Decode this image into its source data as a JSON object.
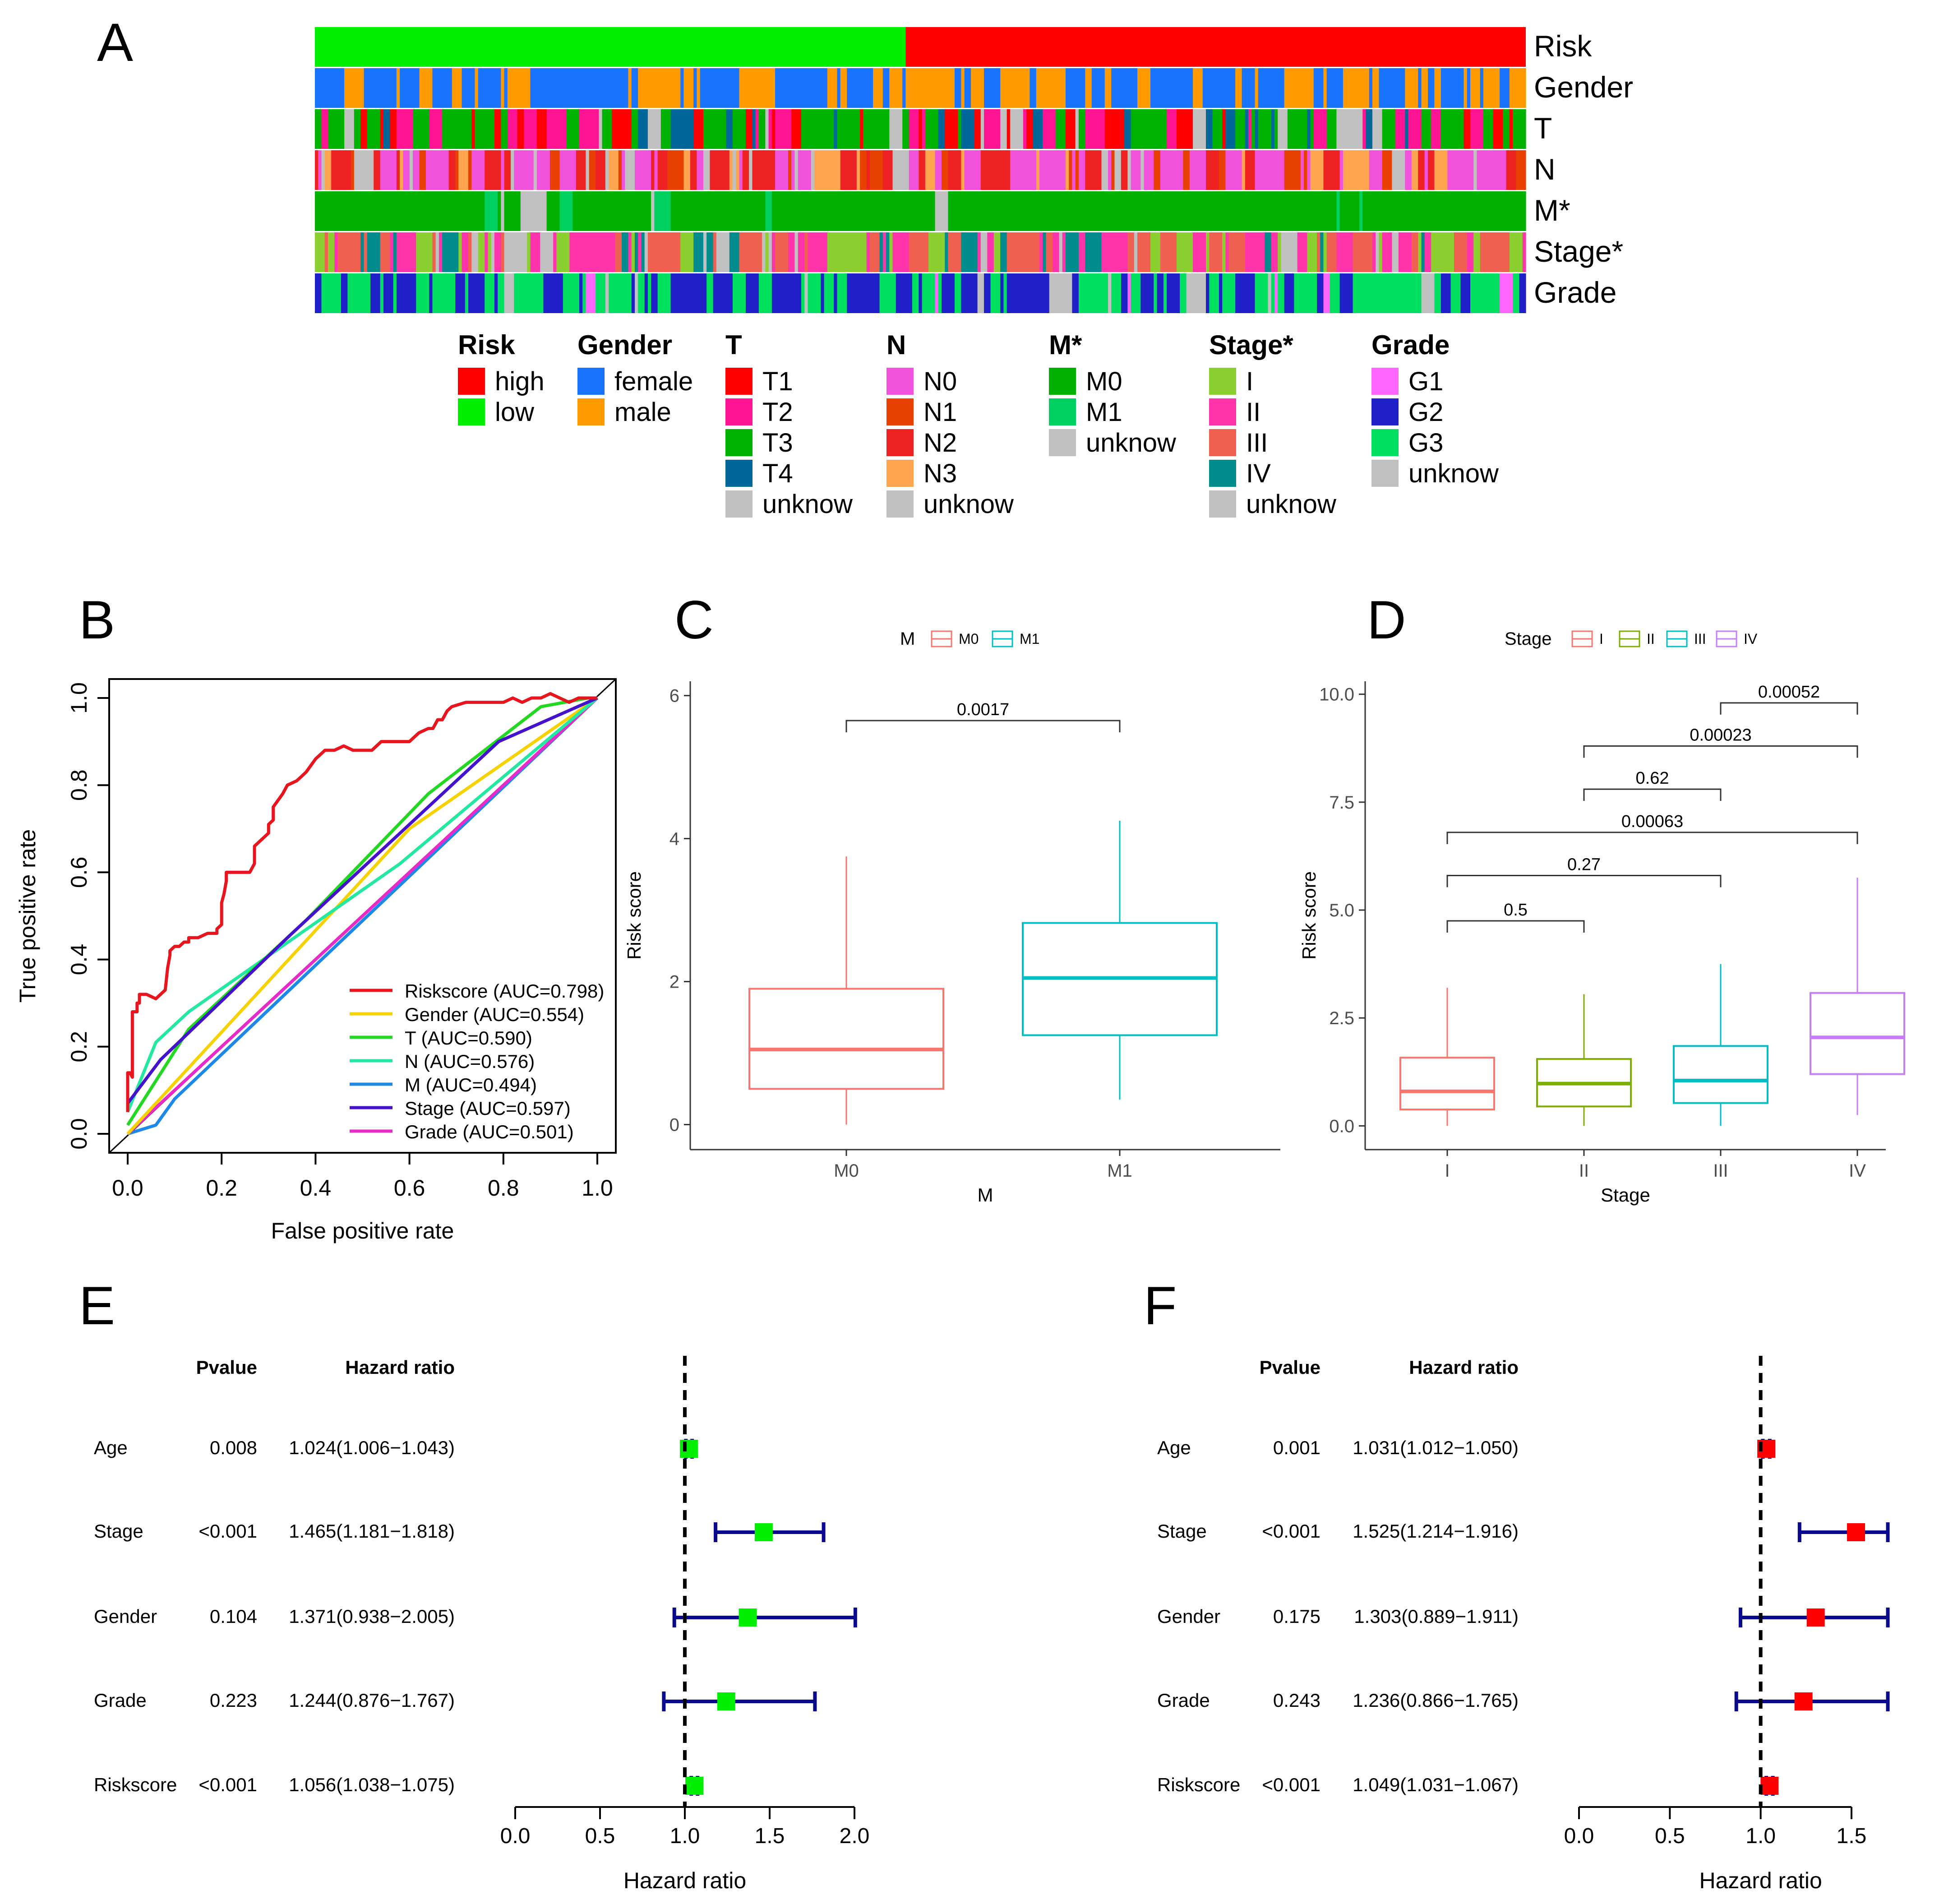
{
  "panels": {
    "A": "A",
    "B": "B",
    "C": "C",
    "D": "D",
    "E": "E",
    "F": "F"
  },
  "colors": {
    "low": "#00EE00",
    "high": "#FF0000",
    "female": "#1874FF",
    "male": "#FF9A00",
    "T1": "#FF0000",
    "T2": "#FF1493",
    "T3": "#00B200",
    "T4": "#00679A",
    "N0": "#F052DC",
    "N1": "#E84000",
    "N2": "#EE2222",
    "N3": "#FFA54F",
    "M0": "#00B000",
    "M1": "#00D060",
    "I": "#8BD030",
    "II": "#FF33AA",
    "III": "#F06050",
    "IV": "#008C8C",
    "G1": "#FF66FF",
    "G2": "#2020C8",
    "G3": "#00E060",
    "unknow": "#C0C0C0",
    "box_M0": "#F8766D",
    "box_M1": "#00BFC4",
    "box_I": "#F8766D",
    "box_II": "#7CAE00",
    "box_III": "#00BFC4",
    "box_IV": "#C77CFF",
    "forest_E_point": "#00EE00",
    "forest_F_point": "#FF0000",
    "forest_ci": "#0A0A8C"
  },
  "chart_data": [
    {
      "panel": "A",
      "type": "heatmap",
      "rows": [
        "Risk",
        "Gender",
        "T",
        "N",
        "M*",
        "Stage*",
        "Grade"
      ],
      "columns_count": 371,
      "row_categories": {
        "Risk": [
          "low",
          "high"
        ],
        "Gender": [
          "female",
          "male"
        ],
        "T": [
          "T1",
          "T2",
          "T3",
          "T4",
          "unknow"
        ],
        "N": [
          "N0",
          "N1",
          "N2",
          "N3",
          "unknow"
        ],
        "M*": [
          "M0",
          "M1",
          "unknow"
        ],
        "Stage*": [
          "I",
          "II",
          "III",
          "IV",
          "unknow"
        ],
        "Grade": [
          "G1",
          "G2",
          "G3",
          "unknow"
        ]
      },
      "risk_low_fraction": 0.487,
      "legend": [
        {
          "title": "Risk",
          "items": [
            "high",
            "low"
          ]
        },
        {
          "title": "Gender",
          "items": [
            "female",
            "male"
          ]
        },
        {
          "title": "T",
          "items": [
            "T1",
            "T2",
            "T3",
            "T4",
            "unknow"
          ]
        },
        {
          "title": "N",
          "items": [
            "N0",
            "N1",
            "N2",
            "N3",
            "unknow"
          ]
        },
        {
          "title": "M*",
          "items": [
            "M0",
            "M1",
            "unknow"
          ]
        },
        {
          "title": "Stage*",
          "items": [
            "I",
            "II",
            "III",
            "IV",
            "unknow"
          ]
        },
        {
          "title": "Grade",
          "items": [
            "G1",
            "G2",
            "G3",
            "unknow"
          ]
        }
      ],
      "legend_keys": {
        "Risk": [
          "high",
          "low"
        ],
        "Gender": [
          "female",
          "male"
        ],
        "T": [
          "T1",
          "T2",
          "T3",
          "T4",
          "unknow"
        ],
        "N": [
          "N0",
          "N1",
          "N2",
          "N3",
          "unknow"
        ],
        "M*": [
          "M0",
          "M1",
          "unknow"
        ],
        "Stage*": [
          "I",
          "II",
          "III",
          "IV",
          "unknow"
        ],
        "Grade": [
          "G1",
          "G2",
          "G3",
          "unknow"
        ]
      }
    },
    {
      "panel": "B",
      "type": "line",
      "xlabel": "False positive rate",
      "ylabel": "True positive rate",
      "xlim": [
        0,
        1
      ],
      "ylim": [
        0,
        1
      ],
      "xticks": [
        "0.0",
        "0.2",
        "0.4",
        "0.6",
        "0.8",
        "1.0"
      ],
      "yticks": [
        "0.0",
        "0.2",
        "0.4",
        "0.6",
        "0.8",
        "1.0"
      ],
      "legend_placement": "bottom-right",
      "series": [
        {
          "name": "Riskscore (AUC=0.798)",
          "color": "#E8141E",
          "x": [
            0,
            0,
            0.005,
            0.01,
            0.01,
            0.02,
            0.02,
            0.025,
            0.025,
            0.04,
            0.06,
            0.08,
            0.085,
            0.09,
            0.09,
            0.1,
            0.11,
            0.12,
            0.13,
            0.13,
            0.15,
            0.17,
            0.19,
            0.19,
            0.2,
            0.2,
            0.205,
            0.21,
            0.21,
            0.23,
            0.26,
            0.27,
            0.27,
            0.28,
            0.3,
            0.3,
            0.31,
            0.31,
            0.33,
            0.34,
            0.36,
            0.37,
            0.38,
            0.4,
            0.42,
            0.44,
            0.46,
            0.48,
            0.5,
            0.52,
            0.54,
            0.56,
            0.58,
            0.6,
            0.62,
            0.64,
            0.65,
            0.66,
            0.67,
            0.68,
            0.69,
            0.72,
            0.75,
            0.78,
            0.8,
            0.82,
            0.84,
            0.86,
            0.88,
            0.9,
            0.92,
            0.94,
            0.96,
            0.98,
            1.0
          ],
          "y": [
            0.05,
            0.14,
            0.14,
            0.13,
            0.28,
            0.28,
            0.3,
            0.3,
            0.32,
            0.32,
            0.31,
            0.33,
            0.38,
            0.41,
            0.42,
            0.43,
            0.43,
            0.44,
            0.44,
            0.45,
            0.45,
            0.46,
            0.46,
            0.47,
            0.48,
            0.53,
            0.55,
            0.58,
            0.6,
            0.6,
            0.6,
            0.62,
            0.66,
            0.67,
            0.69,
            0.71,
            0.72,
            0.75,
            0.78,
            0.8,
            0.81,
            0.82,
            0.83,
            0.86,
            0.88,
            0.88,
            0.89,
            0.88,
            0.88,
            0.88,
            0.9,
            0.9,
            0.9,
            0.9,
            0.92,
            0.93,
            0.93,
            0.95,
            0.95,
            0.97,
            0.98,
            0.99,
            0.99,
            0.99,
            0.99,
            1.0,
            0.99,
            1.0,
            1.0,
            1.01,
            1.0,
            0.99,
            1.0,
            1.0,
            1.0
          ]
        },
        {
          "name": "Gender (AUC=0.554)",
          "color": "#F5D200",
          "x": [
            0,
            0.6,
            1.0
          ],
          "y": [
            0.0,
            0.7,
            1.0
          ]
        },
        {
          "name": "T (AUC=0.590)",
          "color": "#22D822",
          "x": [
            0,
            0.13,
            0.38,
            0.64,
            0.88,
            0.98,
            1.0
          ],
          "y": [
            0.02,
            0.24,
            0.49,
            0.78,
            0.98,
            1.0,
            1.0
          ]
        },
        {
          "name": "N (AUC=0.576)",
          "color": "#22E8A0",
          "x": [
            0,
            0.06,
            0.13,
            0.58,
            1.0
          ],
          "y": [
            0.05,
            0.21,
            0.28,
            0.62,
            1.0
          ]
        },
        {
          "name": "M (AUC=0.494)",
          "color": "#1C88E8",
          "x": [
            0,
            0.06,
            0.1,
            1.0
          ],
          "y": [
            0.0,
            0.02,
            0.08,
            1.0
          ]
        },
        {
          "name": "Stage (AUC=0.597)",
          "color": "#4412CC",
          "x": [
            0,
            0.07,
            0.35,
            0.79,
            1.0
          ],
          "y": [
            0.07,
            0.17,
            0.46,
            0.9,
            1.0
          ]
        },
        {
          "name": "Grade (AUC=0.501)",
          "color": "#E82AC8",
          "x": [
            0,
            0.02,
            1.0
          ],
          "y": [
            0.0,
            0.02,
            1.0
          ]
        }
      ]
    },
    {
      "panel": "C",
      "type": "bar",
      "subtype": "boxplot",
      "legend_title": "M",
      "legend_items": [
        "M0",
        "M1"
      ],
      "xlabel": "M",
      "ylabel": "Risk score",
      "ylim": [
        -0.35,
        6.2
      ],
      "yticks": [
        0,
        2,
        4,
        6
      ],
      "categories": [
        "M0",
        "M1"
      ],
      "boxes": [
        {
          "group": "M0",
          "min": 0.0,
          "q1": 0.5,
          "median": 1.05,
          "q3": 1.9,
          "max": 3.75
        },
        {
          "group": "M1",
          "min": 0.35,
          "q1": 1.25,
          "median": 2.05,
          "q3": 2.82,
          "max": 4.25
        }
      ],
      "comparisons": [
        {
          "from": "M0",
          "to": "M1",
          "p": "0.0017",
          "y": 5.65
        }
      ]
    },
    {
      "panel": "D",
      "type": "bar",
      "subtype": "boxplot",
      "legend_title": "Stage",
      "legend_items": [
        "I",
        "II",
        "III",
        "IV"
      ],
      "xlabel": "Stage",
      "ylabel": "Risk score",
      "ylim": [
        -0.55,
        10.3
      ],
      "yticks": [
        "0.0",
        "2.5",
        "5.0",
        "7.5",
        "10.0"
      ],
      "ytick_values": [
        0,
        2.5,
        5,
        7.5,
        10
      ],
      "categories": [
        "I",
        "II",
        "III",
        "IV"
      ],
      "boxes": [
        {
          "group": "I",
          "min": 0.0,
          "q1": 0.38,
          "median": 0.8,
          "q3": 1.58,
          "max": 3.2
        },
        {
          "group": "II",
          "min": 0.0,
          "q1": 0.45,
          "median": 0.98,
          "q3": 1.55,
          "max": 3.05
        },
        {
          "group": "III",
          "min": 0.0,
          "q1": 0.53,
          "median": 1.05,
          "q3": 1.85,
          "max": 3.75
        },
        {
          "group": "IV",
          "min": 0.25,
          "q1": 1.2,
          "median": 2.05,
          "q3": 3.08,
          "max": 5.75
        }
      ],
      "comparisons": [
        {
          "from": "I",
          "to": "II",
          "p": "0.5",
          "y": 4.75
        },
        {
          "from": "I",
          "to": "III",
          "p": "0.27",
          "y": 5.8
        },
        {
          "from": "I",
          "to": "IV",
          "p": "0.00063",
          "y": 6.8
        },
        {
          "from": "II",
          "to": "III",
          "p": "0.62",
          "y": 7.8
        },
        {
          "from": "II",
          "to": "IV",
          "p": "0.00023",
          "y": 8.8
        },
        {
          "from": "III",
          "to": "IV",
          "p": "0.00052",
          "y": 9.8
        }
      ]
    },
    {
      "panel": "E",
      "type": "scatter",
      "subtype": "forest",
      "col_pvalue": "Pvalue",
      "col_hr": "Hazard ratio",
      "xlabel": "Hazard ratio",
      "xlim": [
        0,
        2.0
      ],
      "xticks": [
        "0.0",
        "0.5",
        "1.0",
        "1.5",
        "2.0"
      ],
      "xtick_values": [
        0,
        0.5,
        1.0,
        1.5,
        2.0
      ],
      "reference_x": 1.0,
      "rows": [
        {
          "label": "Age",
          "pvalue": "0.008",
          "hr_text": "1.024(1.006−1.043)",
          "hr": 1.024,
          "low": 1.006,
          "high": 1.043
        },
        {
          "label": "Stage",
          "pvalue": "<0.001",
          "hr_text": "1.465(1.181−1.818)",
          "hr": 1.465,
          "low": 1.181,
          "high": 1.818
        },
        {
          "label": "Gender",
          "pvalue": "0.104",
          "hr_text": "1.371(0.938−2.005)",
          "hr": 1.371,
          "low": 0.938,
          "high": 2.005
        },
        {
          "label": "Grade",
          "pvalue": "0.223",
          "hr_text": "1.244(0.876−1.767)",
          "hr": 1.244,
          "low": 0.876,
          "high": 1.767
        },
        {
          "label": "Riskscore",
          "pvalue": "<0.001",
          "hr_text": "1.056(1.038−1.075)",
          "hr": 1.056,
          "low": 1.038,
          "high": 1.075
        }
      ]
    },
    {
      "panel": "F",
      "type": "scatter",
      "subtype": "forest",
      "col_pvalue": "Pvalue",
      "col_hr": "Hazard ratio",
      "xlabel": "Hazard ratio",
      "xlim": [
        0,
        1.5
      ],
      "xticks": [
        "0.0",
        "0.5",
        "1.0",
        "1.5"
      ],
      "xtick_values": [
        0,
        0.5,
        1.0,
        1.5
      ],
      "reference_x": 1.0,
      "rows": [
        {
          "label": "Age",
          "pvalue": "0.001",
          "hr_text": "1.031(1.012−1.050)",
          "hr": 1.031,
          "low": 1.012,
          "high": 1.05
        },
        {
          "label": "Stage",
          "pvalue": "<0.001",
          "hr_text": "1.525(1.214−1.916)",
          "hr": 1.525,
          "low": 1.214,
          "high": 1.916
        },
        {
          "label": "Gender",
          "pvalue": "0.175",
          "hr_text": "1.303(0.889−1.911)",
          "hr": 1.303,
          "low": 0.889,
          "high": 1.911
        },
        {
          "label": "Grade",
          "pvalue": "0.243",
          "hr_text": "1.236(0.866−1.765)",
          "hr": 1.236,
          "low": 0.866,
          "high": 1.765
        },
        {
          "label": "Riskscore",
          "pvalue": "<0.001",
          "hr_text": "1.049(1.031−1.067)",
          "hr": 1.049,
          "low": 1.031,
          "high": 1.067
        }
      ]
    }
  ]
}
